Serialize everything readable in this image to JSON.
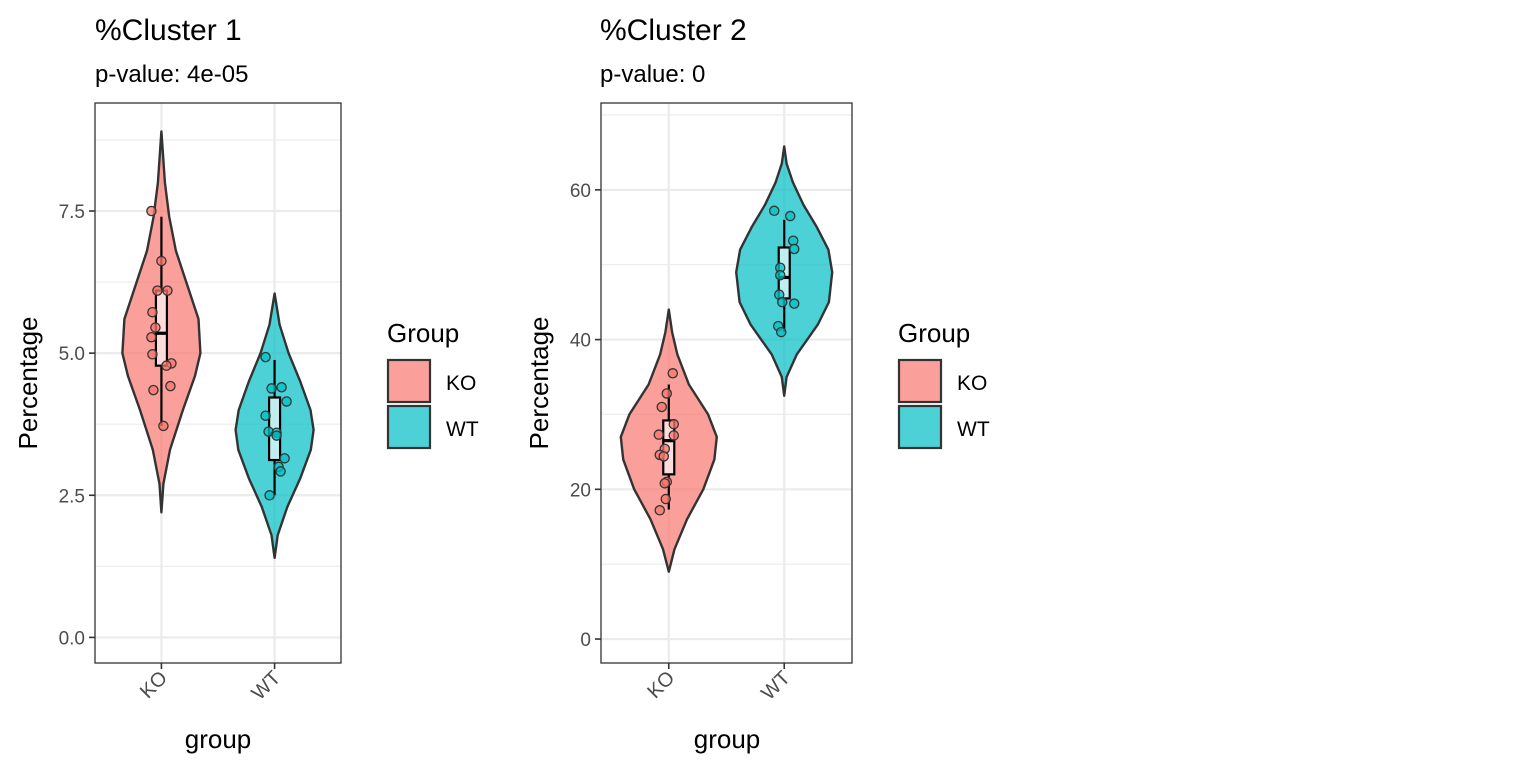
{
  "chart_data": [
    {
      "type": "violin",
      "title": "%Cluster 1",
      "subtitle": "p-value: 4e-05",
      "xlabel": "group",
      "ylabel": "Percentage",
      "categories": [
        "KO",
        "WT"
      ],
      "yticks": [
        0.0,
        2.5,
        5.0,
        7.5
      ],
      "ytick_labels": [
        "0.0",
        "2.5",
        "5.0",
        "7.5"
      ],
      "ylim": [
        -0.45,
        9.4
      ],
      "legend": {
        "title": "Group",
        "placement": "right",
        "entries": [
          "KO",
          "WT"
        ]
      },
      "colors": {
        "KO": "#F8766D",
        "WT": "#00BFC4"
      },
      "grid": true,
      "series": [
        {
          "name": "KO",
          "points": [
            7.5,
            6.62,
            6.1,
            6.1,
            5.72,
            5.45,
            5.28,
            4.98,
            4.82,
            4.78,
            4.42,
            4.35,
            3.72
          ],
          "box": {
            "min": 3.72,
            "q1": 4.78,
            "median": 5.35,
            "q3": 6.1,
            "max": 7.4
          },
          "violin": [
            [
              2.2,
              0.0
            ],
            [
              2.7,
              0.05
            ],
            [
              3.3,
              0.22
            ],
            [
              4.0,
              0.55
            ],
            [
              4.6,
              0.86
            ],
            [
              5.0,
              1.0
            ],
            [
              5.6,
              0.95
            ],
            [
              6.2,
              0.66
            ],
            [
              6.8,
              0.37
            ],
            [
              7.4,
              0.2
            ],
            [
              8.0,
              0.09
            ],
            [
              8.9,
              0.0
            ]
          ]
        },
        {
          "name": "WT",
          "points": [
            4.93,
            4.4,
            4.38,
            4.15,
            3.9,
            3.62,
            3.6,
            3.55,
            3.15,
            3.0,
            2.92,
            2.5
          ],
          "box": {
            "min": 2.5,
            "q1": 3.12,
            "median": 3.58,
            "q3": 4.22,
            "max": 4.88
          },
          "violin": [
            [
              1.4,
              0.0
            ],
            [
              1.8,
              0.08
            ],
            [
              2.3,
              0.33
            ],
            [
              2.8,
              0.66
            ],
            [
              3.3,
              0.93
            ],
            [
              3.65,
              1.0
            ],
            [
              4.0,
              0.92
            ],
            [
              4.5,
              0.66
            ],
            [
              5.0,
              0.36
            ],
            [
              5.5,
              0.13
            ],
            [
              6.05,
              0.0
            ]
          ]
        }
      ]
    },
    {
      "type": "violin",
      "title": "%Cluster 2",
      "subtitle": "p-value: 0",
      "xlabel": "group",
      "ylabel": "Percentage",
      "categories": [
        "KO",
        "WT"
      ],
      "yticks": [
        0,
        20,
        40,
        60
      ],
      "ytick_labels": [
        "0",
        "20",
        "40",
        "60"
      ],
      "ylim": [
        -3.2,
        71.6
      ],
      "legend": {
        "title": "Group",
        "placement": "right",
        "entries": [
          "KO",
          "WT"
        ]
      },
      "colors": {
        "KO": "#F8766D",
        "WT": "#00BFC4"
      },
      "grid": true,
      "series": [
        {
          "name": "KO",
          "points": [
            35.5,
            32.8,
            31.0,
            28.7,
            27.3,
            27.2,
            25.4,
            24.6,
            24.4,
            21.0,
            20.8,
            18.7,
            17.2
          ],
          "box": {
            "min": 17.3,
            "q1": 22.0,
            "median": 26.5,
            "q3": 29.2,
            "max": 34.0
          },
          "violin": [
            [
              9.0,
              0.0
            ],
            [
              12.0,
              0.12
            ],
            [
              16.0,
              0.38
            ],
            [
              20.0,
              0.72
            ],
            [
              24.0,
              0.95
            ],
            [
              27.0,
              1.0
            ],
            [
              30.0,
              0.82
            ],
            [
              34.0,
              0.42
            ],
            [
              38.0,
              0.18
            ],
            [
              41.0,
              0.07
            ],
            [
              44.0,
              0.0
            ]
          ]
        },
        {
          "name": "WT",
          "points": [
            57.2,
            56.5,
            53.2,
            52.1,
            49.6,
            48.6,
            46.0,
            45.0,
            44.8,
            41.8,
            41.0
          ],
          "box": {
            "min": 41.0,
            "q1": 45.5,
            "median": 48.3,
            "q3": 52.3,
            "max": 56.0
          },
          "violin": [
            [
              32.5,
              0.0
            ],
            [
              35.0,
              0.05
            ],
            [
              38.0,
              0.26
            ],
            [
              42.0,
              0.7
            ],
            [
              45.0,
              0.93
            ],
            [
              49.0,
              1.0
            ],
            [
              52.0,
              0.92
            ],
            [
              55.0,
              0.68
            ],
            [
              58.0,
              0.4
            ],
            [
              61.0,
              0.18
            ],
            [
              63.5,
              0.05
            ],
            [
              65.8,
              0.0
            ]
          ]
        }
      ]
    }
  ]
}
